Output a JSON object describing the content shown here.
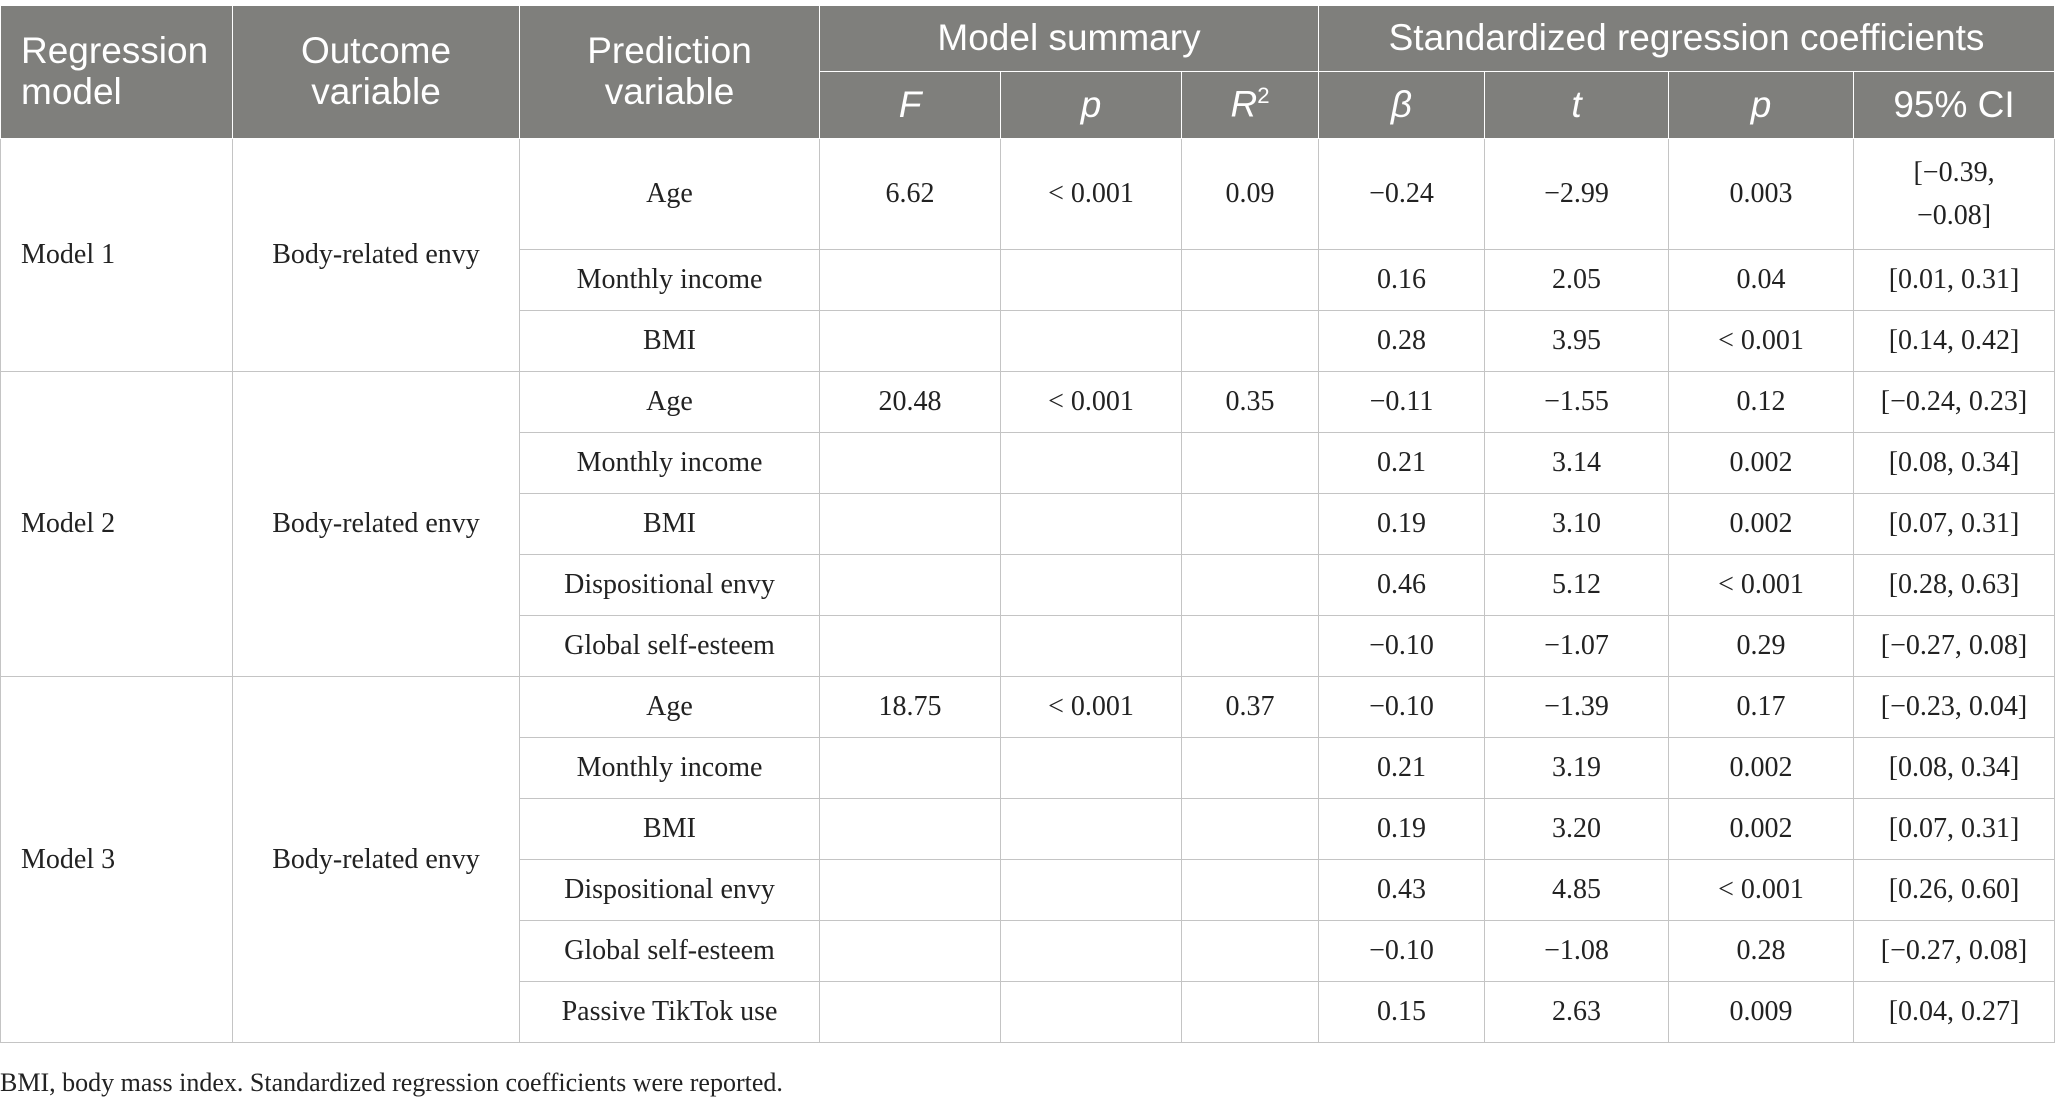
{
  "header": {
    "regression_model": [
      "Regression",
      "model"
    ],
    "outcome_variable": [
      "Outcome",
      "variable"
    ],
    "prediction_variable": [
      "Prediction",
      "variable"
    ],
    "model_summary": "Model summary",
    "std_coefficients": "Standardized regression coefficients",
    "sub": {
      "F": "F",
      "p": "p",
      "R": "R",
      "R_sup": "2",
      "beta": "β",
      "t": "t",
      "p2": "p",
      "ci": "95% CI"
    }
  },
  "models": [
    {
      "name": "Model 1",
      "outcome": "Body-related envy",
      "F": "6.62",
      "p": "< 0.001",
      "R2": "0.09",
      "rows": [
        {
          "predictor": "Age",
          "beta": "−0.24",
          "t": "−2.99",
          "p": "0.003",
          "ci": [
            "[−0.39,",
            "−0.08]"
          ]
        },
        {
          "predictor": "Monthly income",
          "beta": "0.16",
          "t": "2.05",
          "p": "0.04",
          "ci": [
            "[0.01, 0.31]"
          ]
        },
        {
          "predictor": "BMI",
          "beta": "0.28",
          "t": "3.95",
          "p": "< 0.001",
          "ci": [
            "[0.14, 0.42]"
          ]
        }
      ]
    },
    {
      "name": "Model 2",
      "outcome": "Body-related envy",
      "F": "20.48",
      "p": "< 0.001",
      "R2": "0.35",
      "rows": [
        {
          "predictor": "Age",
          "beta": "−0.11",
          "t": "−1.55",
          "p": "0.12",
          "ci": [
            "[−0.24, 0.23]"
          ]
        },
        {
          "predictor": "Monthly income",
          "beta": "0.21",
          "t": "3.14",
          "p": "0.002",
          "ci": [
            "[0.08, 0.34]"
          ]
        },
        {
          "predictor": "BMI",
          "beta": "0.19",
          "t": "3.10",
          "p": "0.002",
          "ci": [
            "[0.07, 0.31]"
          ]
        },
        {
          "predictor": "Dispositional envy",
          "beta": "0.46",
          "t": "5.12",
          "p": "< 0.001",
          "ci": [
            "[0.28, 0.63]"
          ]
        },
        {
          "predictor": "Global self-esteem",
          "beta": "−0.10",
          "t": "−1.07",
          "p": "0.29",
          "ci": [
            "[−0.27, 0.08]"
          ]
        }
      ]
    },
    {
      "name": "Model 3",
      "outcome": "Body-related envy",
      "F": "18.75",
      "p": "< 0.001",
      "R2": "0.37",
      "rows": [
        {
          "predictor": "Age",
          "beta": "−0.10",
          "t": "−1.39",
          "p": "0.17",
          "ci": [
            "[−0.23, 0.04]"
          ]
        },
        {
          "predictor": "Monthly income",
          "beta": "0.21",
          "t": "3.19",
          "p": "0.002",
          "ci": [
            "[0.08, 0.34]"
          ]
        },
        {
          "predictor": "BMI",
          "beta": "0.19",
          "t": "3.20",
          "p": "0.002",
          "ci": [
            "[0.07, 0.31]"
          ]
        },
        {
          "predictor": "Dispositional envy",
          "beta": "0.43",
          "t": "4.85",
          "p": "< 0.001",
          "ci": [
            "[0.26, 0.60]"
          ]
        },
        {
          "predictor": "Global self-esteem",
          "beta": "−0.10",
          "t": "−1.08",
          "p": "0.28",
          "ci": [
            "[−0.27, 0.08]"
          ]
        },
        {
          "predictor": "Passive TikTok use",
          "beta": "0.15",
          "t": "2.63",
          "p": "0.009",
          "ci": [
            "[0.04, 0.27]"
          ]
        }
      ]
    }
  ],
  "footnote": "BMI, body mass index. Standardized regression coefficients were reported."
}
